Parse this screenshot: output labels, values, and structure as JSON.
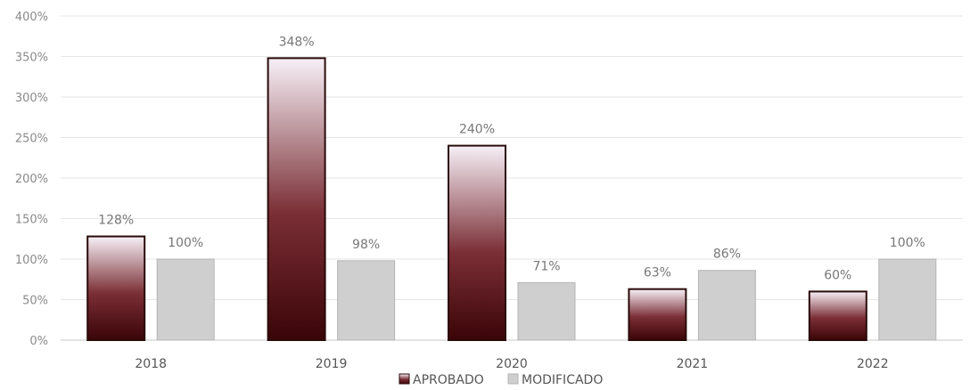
{
  "chart_data": {
    "type": "bar",
    "categories": [
      "2018",
      "2019",
      "2020",
      "2021",
      "2022"
    ],
    "series": [
      {
        "name": "APROBADO",
        "values": [
          128,
          348,
          240,
          63,
          60
        ],
        "labels": [
          "128%",
          "348%",
          "240%",
          "63%",
          "60%"
        ]
      },
      {
        "name": "MODIFICADO",
        "values": [
          100,
          98,
          71,
          86,
          100
        ],
        "labels": [
          "100%",
          "98%",
          "71%",
          "86%",
          "100%"
        ]
      }
    ],
    "y_ticks": [
      "0%",
      "50%",
      "100%",
      "150%",
      "200%",
      "250%",
      "300%",
      "350%",
      "400%"
    ],
    "ylim": [
      0,
      400
    ],
    "grid": true,
    "legend_position": "bottom",
    "colors": {
      "aprobado_dark": "#3a0508",
      "aprobado_mid": "#7a2e35",
      "aprobado_light": "#f7f0f7",
      "aprobado_border": "#2a0a0a",
      "modificado_fill": "#cfcfcf",
      "modificado_border": "#b5b5b5"
    }
  }
}
